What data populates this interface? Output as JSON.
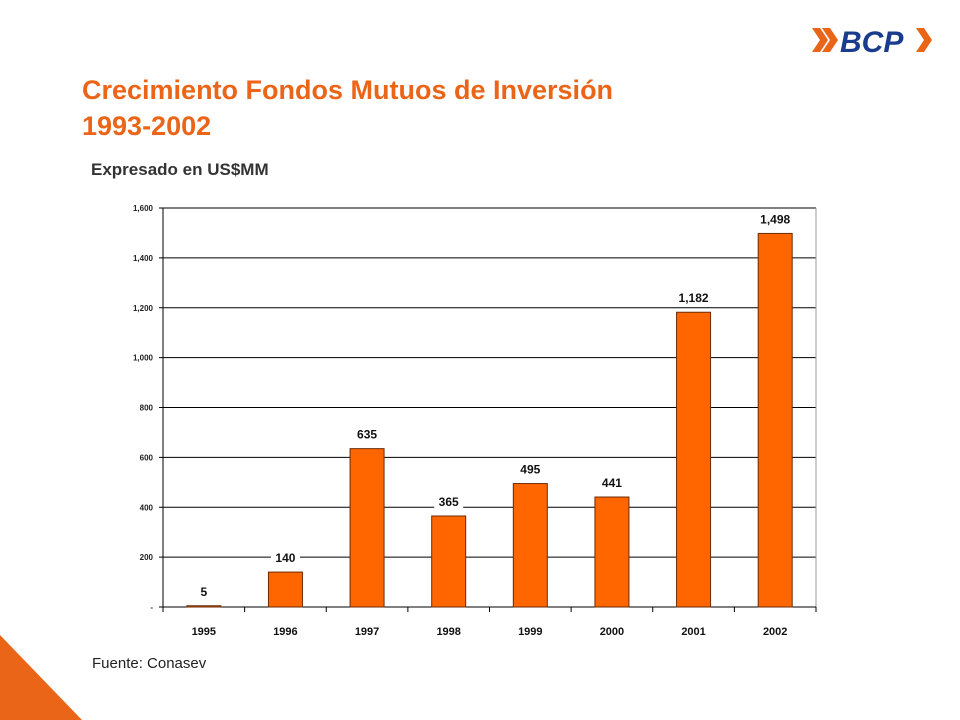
{
  "header": {
    "title_line1": "Crecimiento Fondos Mutuos de Inversión",
    "title_line2": "1993-2002",
    "subtitle": "Expresado en US$MM",
    "logo_text": "BCP"
  },
  "footer": {
    "source": "Fuente: Conasev"
  },
  "colors": {
    "accent": "#ea6518",
    "bar": "#ff6600",
    "bar_border": "#6b2a00"
  },
  "chart_data": {
    "type": "bar",
    "categories": [
      "1995",
      "1996",
      "1997",
      "1998",
      "1999",
      "2000",
      "2001",
      "2002"
    ],
    "values": [
      5,
      140,
      635,
      365,
      495,
      441,
      1182,
      1498
    ],
    "value_labels": [
      "5",
      "140",
      "635",
      "365",
      "495",
      "441",
      "1,182",
      "1,498"
    ],
    "ylim": [
      0,
      1600
    ],
    "yticks": [
      0,
      200,
      400,
      600,
      800,
      1000,
      1200,
      1400,
      1600
    ],
    "ytick_labels": [
      "-",
      "200",
      "400",
      "600",
      "800",
      "1,000",
      "1,200",
      "1,400",
      "1,600"
    ],
    "grid": true,
    "legend": "none"
  }
}
